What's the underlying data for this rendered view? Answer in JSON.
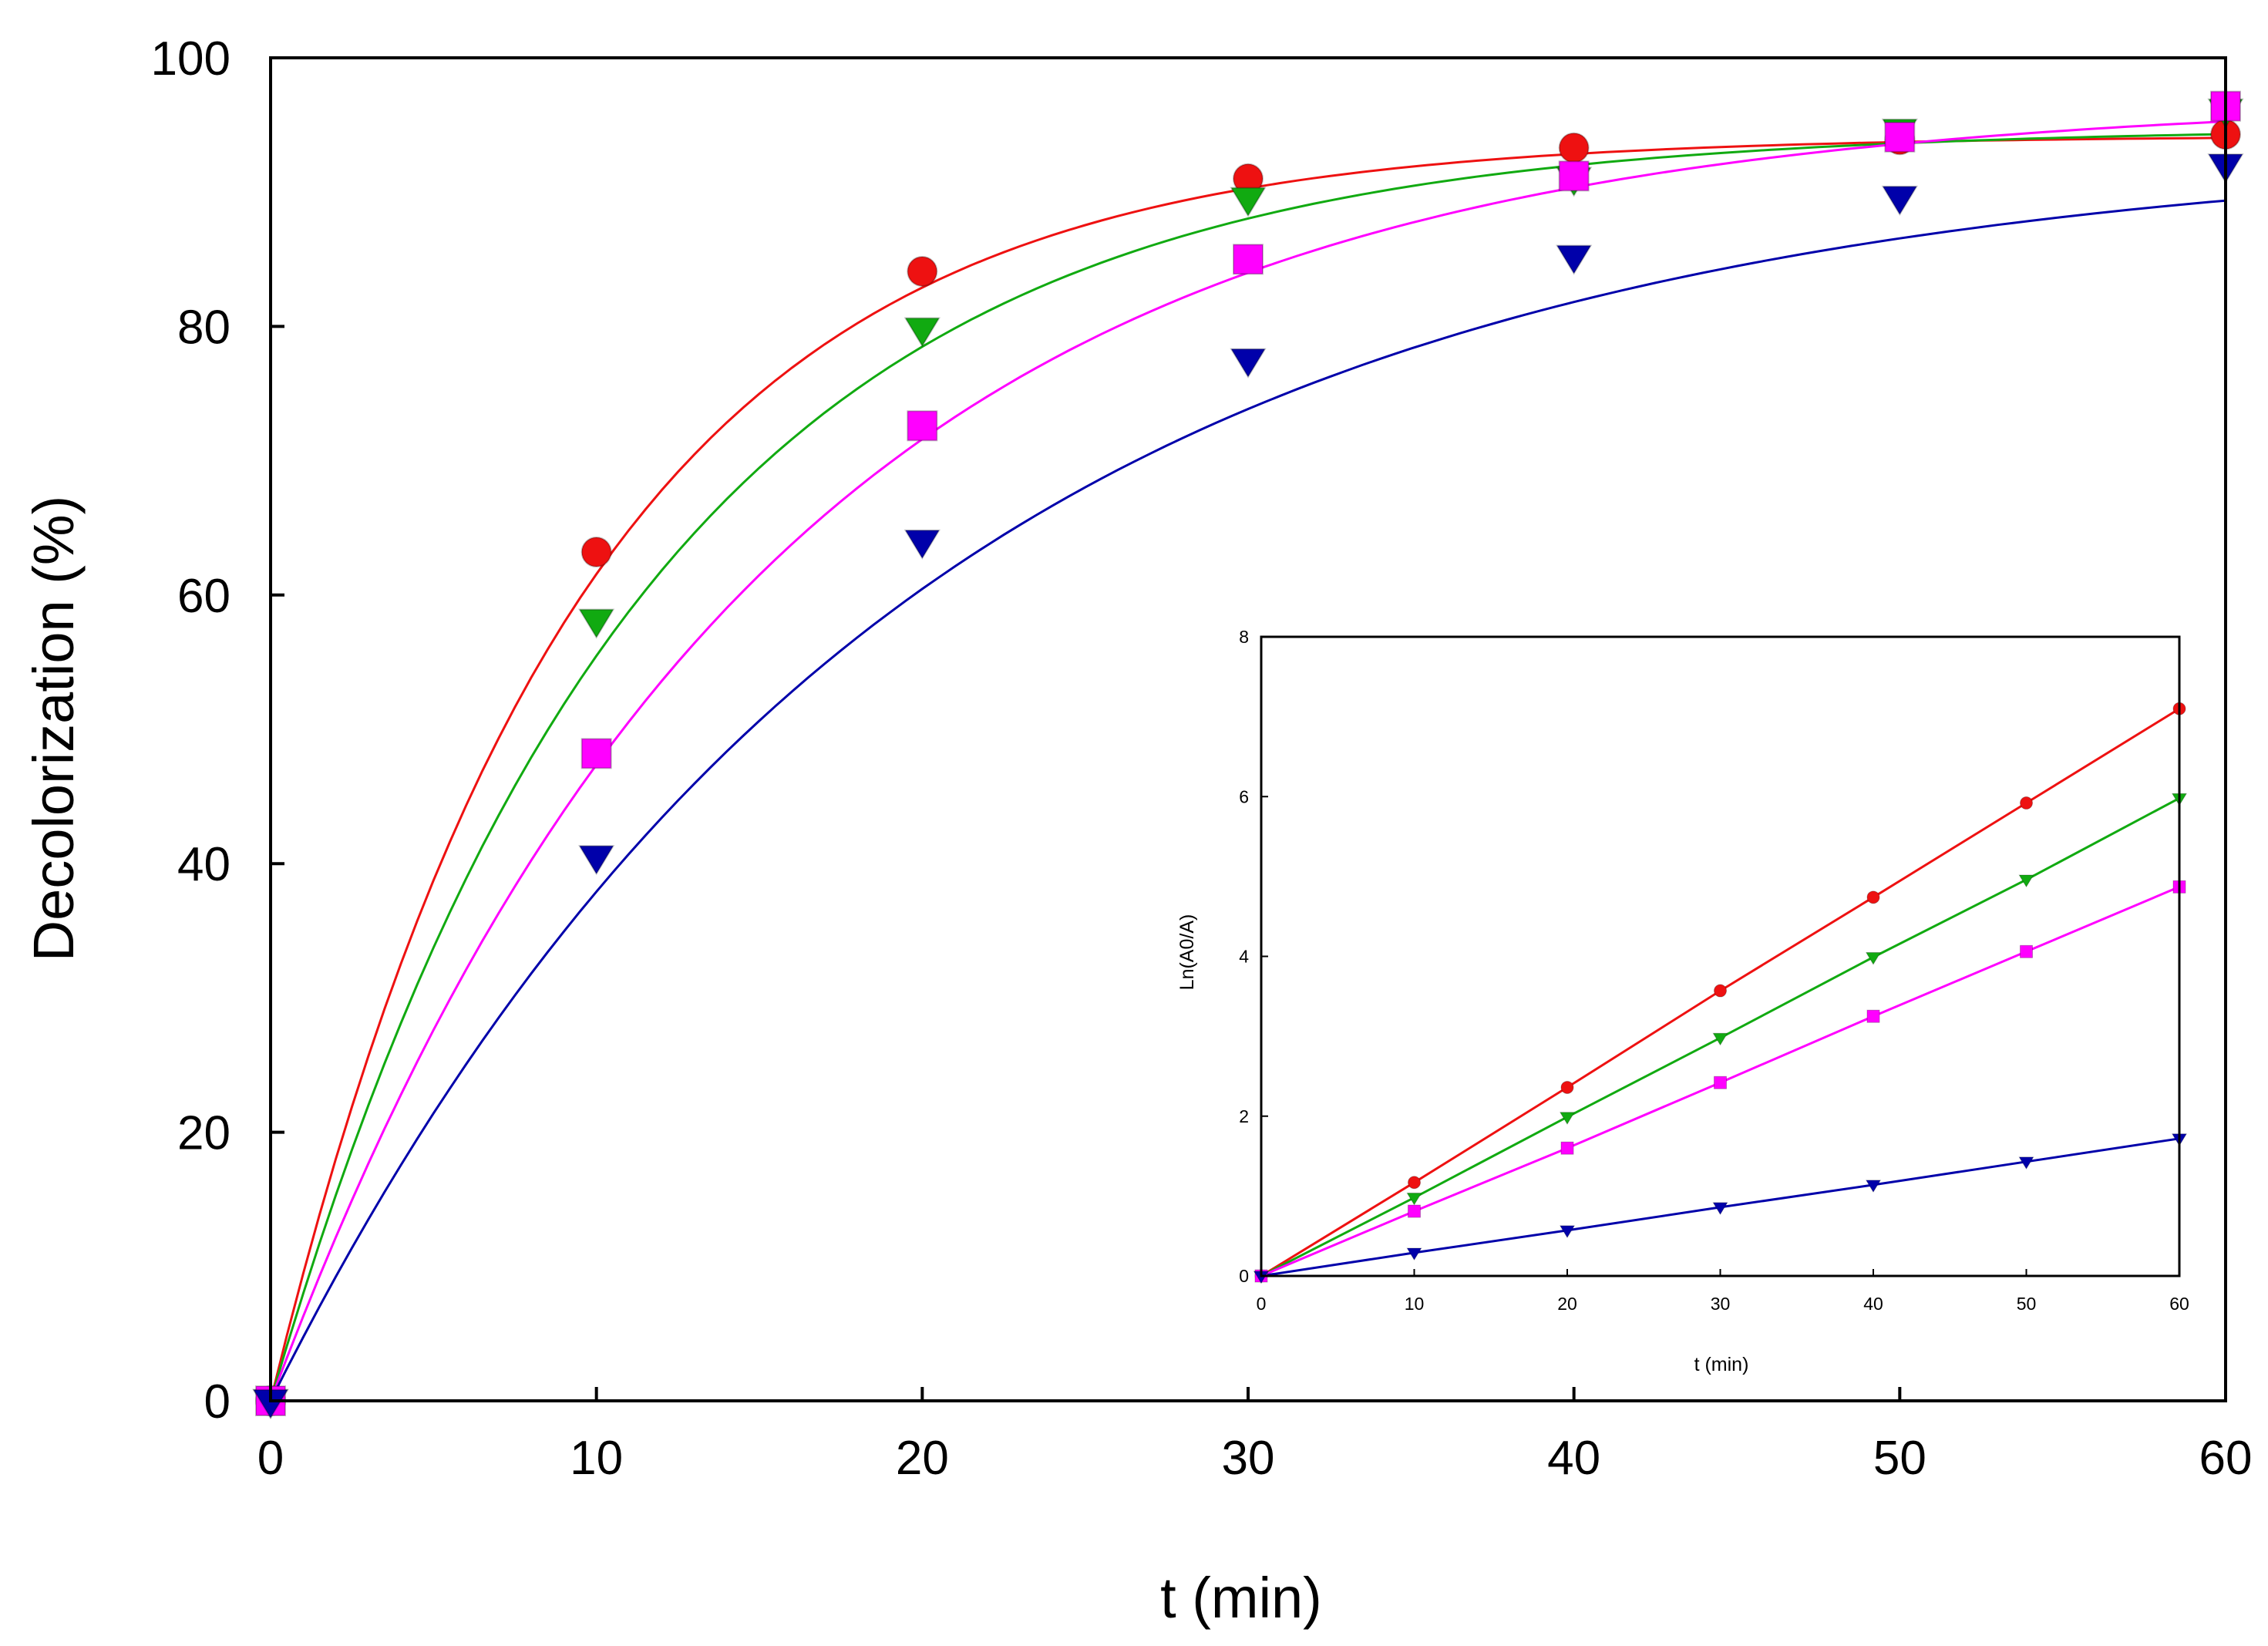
{
  "colors": {
    "red": "#ee1111",
    "green": "#11aa11",
    "magenta": "#ff00ff",
    "blue": "#0000aa"
  },
  "chart_data": [
    {
      "type": "scatter",
      "role": "main",
      "xlabel": "t (min)",
      "ylabel": "Decolorization (%)",
      "xlim": [
        0,
        60
      ],
      "ylim": [
        0,
        100
      ],
      "x_ticks": [
        "0",
        "10",
        "20",
        "30",
        "40",
        "50",
        "60"
      ],
      "y_ticks": [
        "0",
        "20",
        "40",
        "60",
        "80",
        "100"
      ],
      "grid": false,
      "x": [
        0,
        10,
        20,
        30,
        40,
        50,
        60
      ],
      "series": [
        {
          "color": "#ee1111",
          "marker": "circle",
          "values": [
            0,
            63.2,
            84.1,
            91.0,
            93.3,
            93.9,
            94.3
          ],
          "fit": {
            "model": "a*(1-exp(-k*t))",
            "a": 94.2,
            "k": 0.106
          }
        },
        {
          "color": "#11aa11",
          "marker": "triangle-down",
          "values": [
            0,
            58.1,
            79.8,
            89.5,
            91.0,
            94.6,
            96.1
          ],
          "fit": {
            "model": "a*(1-exp(-k*t))",
            "a": 94.8,
            "k": 0.088
          }
        },
        {
          "color": "#ff00ff",
          "marker": "square",
          "values": [
            0,
            48.2,
            72.6,
            85.0,
            91.2,
            94.1,
            96.4
          ],
          "fit": {
            "model": "a*(1-exp(-k*t))",
            "a": 97.0,
            "k": 0.067
          }
        },
        {
          "color": "#0000aa",
          "marker": "triangle-down",
          "values": [
            0,
            40.5,
            64.0,
            77.5,
            85.2,
            89.6,
            92.0
          ],
          "fit": {
            "model": "a*(1-exp(-k*t))",
            "a": 93.5,
            "k": 0.052
          }
        }
      ]
    },
    {
      "type": "line",
      "role": "inset",
      "xlabel": "t (min)",
      "ylabel": "Ln(A0/A)",
      "xlim": [
        0,
        60
      ],
      "ylim": [
        0,
        8
      ],
      "x_ticks": [
        "0",
        "10",
        "20",
        "30",
        "40",
        "50",
        "60"
      ],
      "y_ticks": [
        "0",
        "2",
        "4",
        "6",
        "8"
      ],
      "grid": false,
      "x": [
        0,
        10,
        20,
        30,
        40,
        50,
        60
      ],
      "series": [
        {
          "color": "#ee1111",
          "marker": "circle",
          "values": [
            0,
            1.17,
            2.36,
            3.57,
            4.74,
            5.92,
            7.1
          ]
        },
        {
          "color": "#11aa11",
          "marker": "triangle-down",
          "values": [
            0,
            0.98,
            1.99,
            2.98,
            3.99,
            4.96,
            5.98
          ]
        },
        {
          "color": "#ff00ff",
          "marker": "square",
          "values": [
            0,
            0.81,
            1.6,
            2.42,
            3.25,
            4.06,
            4.87
          ]
        },
        {
          "color": "#0000aa",
          "marker": "triangle-down",
          "values": [
            0,
            0.29,
            0.57,
            0.86,
            1.14,
            1.43,
            1.72
          ]
        }
      ]
    }
  ]
}
